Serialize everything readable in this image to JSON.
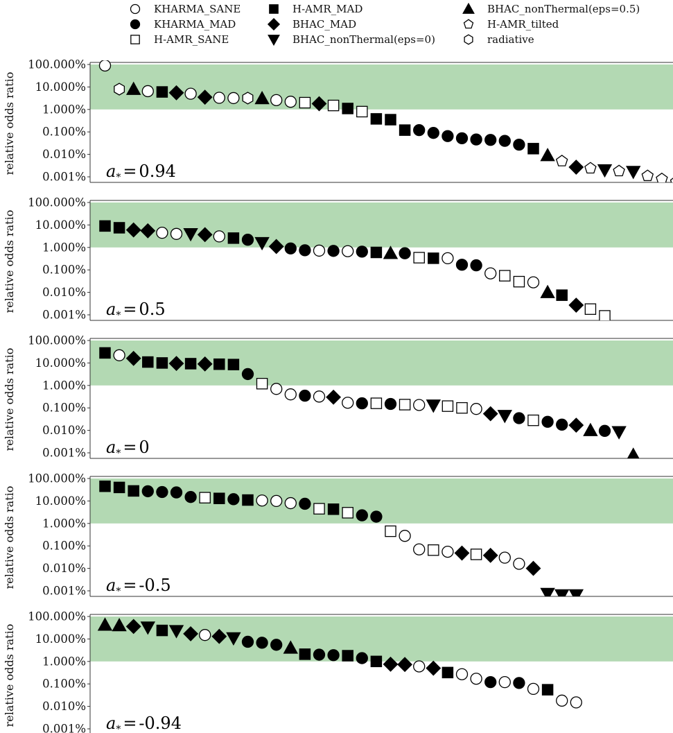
{
  "legend": {
    "items": [
      {
        "label": "KHARMA_SANE",
        "marker": "circle",
        "filled": false
      },
      {
        "label": "KHARMA_MAD",
        "marker": "circle",
        "filled": true
      },
      {
        "label": "H-AMR_SANE",
        "marker": "square",
        "filled": false
      },
      {
        "label": "H-AMR_MAD",
        "marker": "square",
        "filled": true
      },
      {
        "label": "BHAC_MAD",
        "marker": "diamond",
        "filled": true
      },
      {
        "label": "BHAC_nonThermal(eps=0)",
        "marker": "triangle-down",
        "filled": true
      },
      {
        "label": "BHAC_nonThermal(eps=0.5)",
        "marker": "triangle-up",
        "filled": true
      },
      {
        "label": "H-AMR_tilted",
        "marker": "pentagon",
        "filled": false
      },
      {
        "label": "radiative",
        "marker": "hexagon",
        "filled": false
      }
    ]
  },
  "chart_data": [
    {
      "type": "scatter",
      "panel_label": "0.94",
      "ylabel": "relative odds ratio",
      "yscale": "log",
      "ylim": [
        0.001,
        100
      ],
      "yticks": [
        "100.000%",
        "10.000%",
        "1.000%",
        "0.100%",
        "0.010%",
        "0.001%"
      ],
      "shaded_band": [
        1,
        100
      ],
      "band_color": "#b3d9b3",
      "points": [
        {
          "model": "KHARMA_SANE",
          "y": 90
        },
        {
          "model": "radiative",
          "y": 8
        },
        {
          "model": "BHAC_nonThermal(eps=0.5)",
          "y": 8
        },
        {
          "model": "KHARMA_SANE",
          "y": 6.5
        },
        {
          "model": "H-AMR_MAD",
          "y": 6
        },
        {
          "model": "BHAC_MAD",
          "y": 5.5
        },
        {
          "model": "KHARMA_SANE",
          "y": 5
        },
        {
          "model": "BHAC_MAD",
          "y": 3.5
        },
        {
          "model": "KHARMA_SANE",
          "y": 3.3
        },
        {
          "model": "KHARMA_SANE",
          "y": 3.2
        },
        {
          "model": "radiative",
          "y": 3.2
        },
        {
          "model": "BHAC_nonThermal(eps=0.5)",
          "y": 3.1
        },
        {
          "model": "KHARMA_SANE",
          "y": 2.6
        },
        {
          "model": "KHARMA_SANE",
          "y": 2.2
        },
        {
          "model": "H-AMR_SANE",
          "y": 2
        },
        {
          "model": "BHAC_MAD",
          "y": 1.8
        },
        {
          "model": "H-AMR_SANE",
          "y": 1.5
        },
        {
          "model": "H-AMR_MAD",
          "y": 1.1
        },
        {
          "model": "H-AMR_SANE",
          "y": 0.8
        },
        {
          "model": "H-AMR_MAD",
          "y": 0.38
        },
        {
          "model": "H-AMR_MAD",
          "y": 0.35
        },
        {
          "model": "H-AMR_MAD",
          "y": 0.12
        },
        {
          "model": "KHARMA_MAD",
          "y": 0.12
        },
        {
          "model": "KHARMA_MAD",
          "y": 0.09
        },
        {
          "model": "KHARMA_MAD",
          "y": 0.065
        },
        {
          "model": "KHARMA_MAD",
          "y": 0.052
        },
        {
          "model": "KHARMA_MAD",
          "y": 0.046
        },
        {
          "model": "KHARMA_MAD",
          "y": 0.044
        },
        {
          "model": "KHARMA_MAD",
          "y": 0.04
        },
        {
          "model": "KHARMA_MAD",
          "y": 0.027
        },
        {
          "model": "H-AMR_MAD",
          "y": 0.018
        },
        {
          "model": "BHAC_nonThermal(eps=0.5)",
          "y": 0.009
        },
        {
          "model": "H-AMR_tilted",
          "y": 0.005
        },
        {
          "model": "BHAC_MAD",
          "y": 0.0027
        },
        {
          "model": "H-AMR_tilted",
          "y": 0.0024
        },
        {
          "model": "BHAC_nonThermal(eps=0)",
          "y": 0.002
        },
        {
          "model": "H-AMR_tilted",
          "y": 0.0018
        },
        {
          "model": "BHAC_nonThermal(eps=0)",
          "y": 0.0017
        },
        {
          "model": "H-AMR_tilted",
          "y": 0.0011
        },
        {
          "model": "H-AMR_tilted",
          "y": 0.0008
        },
        {
          "model": "H-AMR_tilted",
          "y": 0.0006
        }
      ]
    },
    {
      "type": "scatter",
      "panel_label": "0.5",
      "ylabel": "relative odds ratio",
      "yscale": "log",
      "ylim": [
        0.001,
        100
      ],
      "yticks": [
        "100.000%",
        "10.000%",
        "1.000%",
        "0.100%",
        "0.010%",
        "0.001%"
      ],
      "shaded_band": [
        1,
        100
      ],
      "band_color": "#b3d9b3",
      "points": [
        {
          "model": "H-AMR_MAD",
          "y": 9
        },
        {
          "model": "H-AMR_MAD",
          "y": 7.5
        },
        {
          "model": "BHAC_MAD",
          "y": 6
        },
        {
          "model": "BHAC_MAD",
          "y": 5.5
        },
        {
          "model": "KHARMA_SANE",
          "y": 4.5
        },
        {
          "model": "KHARMA_SANE",
          "y": 4
        },
        {
          "model": "BHAC_nonThermal(eps=0)",
          "y": 4
        },
        {
          "model": "BHAC_MAD",
          "y": 3.7
        },
        {
          "model": "KHARMA_SANE",
          "y": 3.1
        },
        {
          "model": "H-AMR_MAD",
          "y": 2.6
        },
        {
          "model": "KHARMA_MAD",
          "y": 2.2
        },
        {
          "model": "BHAC_nonThermal(eps=0)",
          "y": 1.6
        },
        {
          "model": "BHAC_MAD",
          "y": 1.1
        },
        {
          "model": "KHARMA_MAD",
          "y": 0.9
        },
        {
          "model": "KHARMA_MAD",
          "y": 0.75
        },
        {
          "model": "KHARMA_SANE",
          "y": 0.72
        },
        {
          "model": "KHARMA_MAD",
          "y": 0.7
        },
        {
          "model": "KHARMA_SANE",
          "y": 0.68
        },
        {
          "model": "KHARMA_MAD",
          "y": 0.65
        },
        {
          "model": "H-AMR_MAD",
          "y": 0.6
        },
        {
          "model": "BHAC_nonThermal(eps=0.5)",
          "y": 0.55
        },
        {
          "model": "KHARMA_MAD",
          "y": 0.55
        },
        {
          "model": "H-AMR_SANE",
          "y": 0.35
        },
        {
          "model": "H-AMR_MAD",
          "y": 0.33
        },
        {
          "model": "KHARMA_SANE",
          "y": 0.33
        },
        {
          "model": "KHARMA_MAD",
          "y": 0.17
        },
        {
          "model": "KHARMA_MAD",
          "y": 0.16
        },
        {
          "model": "KHARMA_SANE",
          "y": 0.07
        },
        {
          "model": "H-AMR_SANE",
          "y": 0.055
        },
        {
          "model": "H-AMR_SANE",
          "y": 0.03
        },
        {
          "model": "KHARMA_SANE",
          "y": 0.028
        },
        {
          "model": "BHAC_nonThermal(eps=0.5)",
          "y": 0.01
        },
        {
          "model": "H-AMR_MAD",
          "y": 0.0075
        },
        {
          "model": "BHAC_MAD",
          "y": 0.0027
        },
        {
          "model": "H-AMR_SANE",
          "y": 0.0018
        },
        {
          "model": "H-AMR_SANE",
          "y": 0.0009
        }
      ]
    },
    {
      "type": "scatter",
      "panel_label": "0",
      "ylabel": "relative odds ratio",
      "yscale": "log",
      "ylim": [
        0.001,
        100
      ],
      "yticks": [
        "100.000%",
        "10.000%",
        "1.000%",
        "0.100%",
        "0.010%",
        "0.001%"
      ],
      "shaded_band": [
        1,
        100
      ],
      "band_color": "#b3d9b3",
      "points": [
        {
          "model": "H-AMR_MAD",
          "y": 28
        },
        {
          "model": "KHARMA_SANE",
          "y": 22
        },
        {
          "model": "BHAC_MAD",
          "y": 16
        },
        {
          "model": "H-AMR_MAD",
          "y": 11
        },
        {
          "model": "H-AMR_MAD",
          "y": 10
        },
        {
          "model": "BHAC_MAD",
          "y": 9.5
        },
        {
          "model": "H-AMR_MAD",
          "y": 9.3
        },
        {
          "model": "BHAC_MAD",
          "y": 9
        },
        {
          "model": "H-AMR_MAD",
          "y": 8.8
        },
        {
          "model": "H-AMR_MAD",
          "y": 8.5
        },
        {
          "model": "KHARMA_MAD",
          "y": 3.2
        },
        {
          "model": "H-AMR_SANE",
          "y": 1.2
        },
        {
          "model": "KHARMA_SANE",
          "y": 0.7
        },
        {
          "model": "KHARMA_SANE",
          "y": 0.4
        },
        {
          "model": "KHARMA_MAD",
          "y": 0.35
        },
        {
          "model": "KHARMA_SANE",
          "y": 0.32
        },
        {
          "model": "BHAC_MAD",
          "y": 0.3
        },
        {
          "model": "KHARMA_SANE",
          "y": 0.17
        },
        {
          "model": "KHARMA_MAD",
          "y": 0.16
        },
        {
          "model": "H-AMR_SANE",
          "y": 0.16
        },
        {
          "model": "KHARMA_MAD",
          "y": 0.15
        },
        {
          "model": "H-AMR_SANE",
          "y": 0.14
        },
        {
          "model": "KHARMA_SANE",
          "y": 0.135
        },
        {
          "model": "BHAC_nonThermal(eps=0)",
          "y": 0.13
        },
        {
          "model": "H-AMR_SANE",
          "y": 0.12
        },
        {
          "model": "H-AMR_SANE",
          "y": 0.1
        },
        {
          "model": "KHARMA_SANE",
          "y": 0.09
        },
        {
          "model": "BHAC_MAD",
          "y": 0.055
        },
        {
          "model": "BHAC_nonThermal(eps=0)",
          "y": 0.045
        },
        {
          "model": "KHARMA_MAD",
          "y": 0.035
        },
        {
          "model": "H-AMR_SANE",
          "y": 0.028
        },
        {
          "model": "KHARMA_MAD",
          "y": 0.024
        },
        {
          "model": "KHARMA_MAD",
          "y": 0.018
        },
        {
          "model": "BHAC_MAD",
          "y": 0.017
        },
        {
          "model": "BHAC_nonThermal(eps=0.5)",
          "y": 0.01
        },
        {
          "model": "KHARMA_MAD",
          "y": 0.0095
        },
        {
          "model": "BHAC_nonThermal(eps=0)",
          "y": 0.0085
        },
        {
          "model": "BHAC_nonThermal(eps=0.5)",
          "y": 0.0008
        }
      ]
    },
    {
      "type": "scatter",
      "panel_label": "-0.5",
      "ylabel": "relative odds ratio",
      "yscale": "log",
      "ylim": [
        0.001,
        100
      ],
      "yticks": [
        "100.000%",
        "10.000%",
        "1.000%",
        "0.100%",
        "0.010%",
        "0.001%"
      ],
      "shaded_band": [
        1,
        100
      ],
      "band_color": "#b3d9b3",
      "points": [
        {
          "model": "H-AMR_MAD",
          "y": 45
        },
        {
          "model": "H-AMR_MAD",
          "y": 40
        },
        {
          "model": "H-AMR_MAD",
          "y": 28
        },
        {
          "model": "KHARMA_MAD",
          "y": 27
        },
        {
          "model": "KHARMA_MAD",
          "y": 25
        },
        {
          "model": "KHARMA_MAD",
          "y": 24
        },
        {
          "model": "KHARMA_MAD",
          "y": 15
        },
        {
          "model": "H-AMR_SANE",
          "y": 14
        },
        {
          "model": "H-AMR_MAD",
          "y": 13
        },
        {
          "model": "KHARMA_MAD",
          "y": 12
        },
        {
          "model": "H-AMR_MAD",
          "y": 11
        },
        {
          "model": "KHARMA_SANE",
          "y": 10.5
        },
        {
          "model": "KHARMA_SANE",
          "y": 10
        },
        {
          "model": "KHARMA_SANE",
          "y": 8
        },
        {
          "model": "KHARMA_MAD",
          "y": 7.5
        },
        {
          "model": "H-AMR_SANE",
          "y": 4.5
        },
        {
          "model": "H-AMR_MAD",
          "y": 4.3
        },
        {
          "model": "H-AMR_SANE",
          "y": 3
        },
        {
          "model": "KHARMA_MAD",
          "y": 2.3
        },
        {
          "model": "KHARMA_MAD",
          "y": 2
        },
        {
          "model": "H-AMR_SANE",
          "y": 0.45
        },
        {
          "model": "KHARMA_SANE",
          "y": 0.28
        },
        {
          "model": "KHARMA_SANE",
          "y": 0.07
        },
        {
          "model": "H-AMR_SANE",
          "y": 0.065
        },
        {
          "model": "KHARMA_SANE",
          "y": 0.055
        },
        {
          "model": "BHAC_MAD",
          "y": 0.048
        },
        {
          "model": "H-AMR_SANE",
          "y": 0.042
        },
        {
          "model": "BHAC_MAD",
          "y": 0.038
        },
        {
          "model": "KHARMA_SANE",
          "y": 0.03
        },
        {
          "model": "KHARMA_SANE",
          "y": 0.016
        },
        {
          "model": "BHAC_MAD",
          "y": 0.01
        },
        {
          "model": "BHAC_nonThermal(eps=0)",
          "y": 0.00075
        },
        {
          "model": "BHAC_nonThermal(eps=0)",
          "y": 0.00065
        },
        {
          "model": "BHAC_nonThermal(eps=0)",
          "y": 0.00065
        }
      ]
    },
    {
      "type": "scatter",
      "panel_label": "-0.94",
      "ylabel": "relative odds ratio",
      "yscale": "log",
      "ylim": [
        0.001,
        100
      ],
      "yticks": [
        "100.000%",
        "10.000%",
        "1.000%",
        "0.100%",
        "0.010%",
        "0.001%"
      ],
      "shaded_band": [
        1,
        100
      ],
      "band_color": "#b3d9b3",
      "points": [
        {
          "model": "BHAC_nonThermal(eps=0.5)",
          "y": 42
        },
        {
          "model": "BHAC_nonThermal(eps=0.5)",
          "y": 40
        },
        {
          "model": "BHAC_MAD",
          "y": 36
        },
        {
          "model": "BHAC_nonThermal(eps=0)",
          "y": 33
        },
        {
          "model": "H-AMR_MAD",
          "y": 24
        },
        {
          "model": "BHAC_nonThermal(eps=0)",
          "y": 23
        },
        {
          "model": "BHAC_MAD",
          "y": 17
        },
        {
          "model": "KHARMA_SANE",
          "y": 15
        },
        {
          "model": "BHAC_MAD",
          "y": 13
        },
        {
          "model": "BHAC_nonThermal(eps=0)",
          "y": 11
        },
        {
          "model": "KHARMA_MAD",
          "y": 7.5
        },
        {
          "model": "KHARMA_MAD",
          "y": 6.8
        },
        {
          "model": "KHARMA_MAD",
          "y": 5.5
        },
        {
          "model": "BHAC_nonThermal(eps=0.5)",
          "y": 4
        },
        {
          "model": "H-AMR_MAD",
          "y": 2.1
        },
        {
          "model": "KHARMA_MAD",
          "y": 2
        },
        {
          "model": "KHARMA_MAD",
          "y": 1.9
        },
        {
          "model": "H-AMR_MAD",
          "y": 1.8
        },
        {
          "model": "KHARMA_MAD",
          "y": 1.4
        },
        {
          "model": "H-AMR_MAD",
          "y": 1.0
        },
        {
          "model": "BHAC_MAD",
          "y": 0.75
        },
        {
          "model": "BHAC_MAD",
          "y": 0.73
        },
        {
          "model": "KHARMA_SANE",
          "y": 0.6
        },
        {
          "model": "BHAC_MAD",
          "y": 0.5
        },
        {
          "model": "H-AMR_MAD",
          "y": 0.32
        },
        {
          "model": "KHARMA_SANE",
          "y": 0.27
        },
        {
          "model": "KHARMA_SANE",
          "y": 0.17
        },
        {
          "model": "KHARMA_MAD",
          "y": 0.12
        },
        {
          "model": "KHARMA_SANE",
          "y": 0.12
        },
        {
          "model": "KHARMA_MAD",
          "y": 0.11
        },
        {
          "model": "KHARMA_SANE",
          "y": 0.06
        },
        {
          "model": "H-AMR_MAD",
          "y": 0.055
        },
        {
          "model": "KHARMA_SANE",
          "y": 0.018
        },
        {
          "model": "KHARMA_SANE",
          "y": 0.015
        }
      ]
    }
  ]
}
